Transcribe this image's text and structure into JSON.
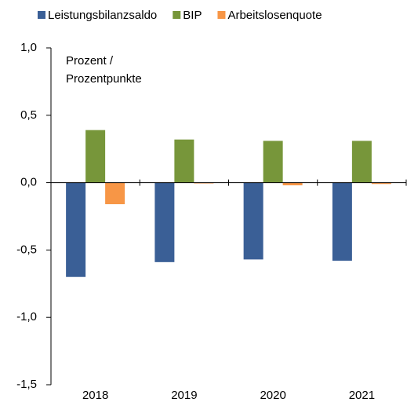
{
  "chart_data": {
    "type": "bar",
    "annotation": [
      "Prozent /",
      "Prozentpunkte"
    ],
    "categories": [
      "2018",
      "2019",
      "2020",
      "2021"
    ],
    "series": [
      {
        "name": "Leistungsbilanzsaldo",
        "color": "#3a5f96",
        "values": [
          -0.7,
          -0.59,
          -0.57,
          -0.58
        ]
      },
      {
        "name": "BIP",
        "color": "#77963a",
        "values": [
          0.39,
          0.32,
          0.31,
          0.31
        ]
      },
      {
        "name": "Arbeitslosenquote",
        "color": "#f79646",
        "values": [
          -0.16,
          0.0,
          -0.02,
          -0.01
        ]
      }
    ],
    "ylim": [
      -1.5,
      1.0
    ],
    "yticks": [
      {
        "value": -1.5,
        "label": "-1,5"
      },
      {
        "value": -1.0,
        "label": "-1,0"
      },
      {
        "value": -0.5,
        "label": "-0,5"
      },
      {
        "value": 0.0,
        "label": "0,0"
      },
      {
        "value": 0.5,
        "label": "0,5"
      },
      {
        "value": 1.0,
        "label": "1,0"
      }
    ],
    "grid": false,
    "legend": "top"
  }
}
